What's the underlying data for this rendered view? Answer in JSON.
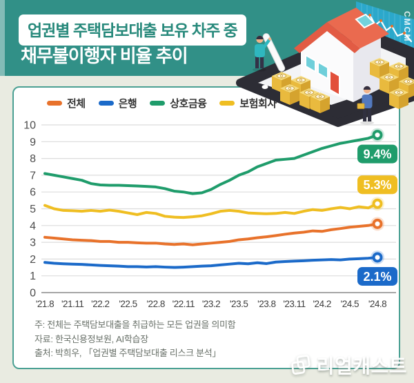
{
  "banner": {
    "title_line1": "업권별 주택담보대출 보유 차주 중",
    "title_line2": "채무불이행자 비율 추이",
    "bg_color": "#319087",
    "title_color": "#27897B"
  },
  "legend": [
    {
      "label": "전체",
      "color": "#E8722B"
    },
    {
      "label": "은행",
      "color": "#1B6AC9"
    },
    {
      "label": "상호금융",
      "color": "#1F9C6B"
    },
    {
      "label": "보험회사",
      "color": "#EFBE22"
    }
  ],
  "chart_data": {
    "type": "line",
    "title": "업권별 주택담보대출 보유 차주 중 채무불이행자 비율 추이",
    "unit": "%",
    "x_interval": "monthly",
    "x_start": "2021-08",
    "x_end": "2024-08",
    "tick_labels": [
      "'21.8",
      "'21.11",
      "'22.2",
      "'22.5",
      "'22.8",
      "'22.11",
      "'23.2",
      "'23.5",
      "'23.8",
      "'23.11",
      "'24.2",
      "'24.5",
      "'24.8"
    ],
    "ylim": [
      0,
      10
    ],
    "y_ticks": [
      0,
      1,
      2,
      3,
      4,
      5,
      6,
      7,
      8,
      9,
      10
    ],
    "grid": true,
    "legend_position": "top",
    "series": [
      {
        "name": "전체",
        "color": "#E8722B",
        "end_label": null,
        "label_pos": null,
        "values": [
          3.3,
          3.25,
          3.2,
          3.15,
          3.12,
          3.1,
          3.05,
          3.05,
          3.0,
          3.0,
          2.97,
          2.95,
          2.95,
          2.9,
          2.87,
          2.9,
          2.85,
          2.9,
          2.95,
          3.0,
          3.05,
          3.15,
          3.2,
          3.27,
          3.33,
          3.4,
          3.48,
          3.55,
          3.6,
          3.68,
          3.65,
          3.75,
          3.82,
          3.9,
          3.95,
          4.0,
          4.1
        ]
      },
      {
        "name": "은행",
        "color": "#1B6AC9",
        "end_label": "2.1%",
        "label_pos": "below",
        "values": [
          1.8,
          1.75,
          1.72,
          1.7,
          1.68,
          1.65,
          1.62,
          1.6,
          1.58,
          1.55,
          1.55,
          1.53,
          1.55,
          1.52,
          1.5,
          1.52,
          1.55,
          1.58,
          1.6,
          1.65,
          1.7,
          1.75,
          1.72,
          1.78,
          1.73,
          1.82,
          1.85,
          1.88,
          1.9,
          1.93,
          1.95,
          1.97,
          1.95,
          2.0,
          2.02,
          2.05,
          2.1
        ]
      },
      {
        "name": "상호금융",
        "color": "#1F9C6B",
        "end_label": "9.4%",
        "label_pos": "below",
        "values": [
          7.1,
          7.0,
          6.9,
          6.8,
          6.7,
          6.5,
          6.42,
          6.4,
          6.4,
          6.38,
          6.36,
          6.33,
          6.3,
          6.2,
          6.05,
          6.0,
          5.9,
          5.95,
          6.15,
          6.45,
          6.7,
          7.0,
          7.2,
          7.5,
          7.7,
          7.9,
          7.95,
          8.0,
          8.2,
          8.4,
          8.6,
          8.75,
          8.9,
          9.0,
          9.1,
          9.2,
          9.4
        ]
      },
      {
        "name": "보험회사",
        "color": "#EFBE22",
        "end_label": "5.3%",
        "label_pos": "above",
        "values": [
          5.2,
          5.0,
          4.9,
          4.88,
          4.85,
          4.9,
          4.85,
          4.92,
          4.85,
          4.75,
          4.65,
          4.78,
          4.72,
          4.55,
          4.5,
          4.48,
          4.52,
          4.58,
          4.7,
          4.85,
          4.9,
          4.85,
          4.75,
          4.72,
          4.7,
          4.72,
          4.78,
          4.72,
          4.85,
          4.95,
          4.9,
          5.0,
          5.08,
          5.0,
          5.12,
          5.05,
          5.3
        ]
      }
    ]
  },
  "notes": {
    "line1": "주: 전체는 주택담보대출을 취급하는 모든 업권을 의미함",
    "line2": "자료: 한국신용정보원, AI학습장",
    "line3": "출처: 박희우, 「업권별 주택담보대출 리스크 분석」"
  },
  "logo": {
    "text": "리얼캐스트"
  },
  "illustration": {
    "panel_text": "CMCM"
  }
}
